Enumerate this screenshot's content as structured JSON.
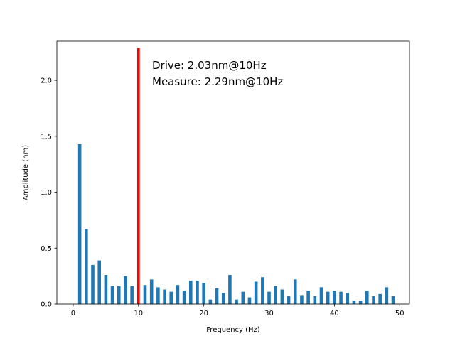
{
  "chart_data": {
    "type": "bar",
    "xlabel": "Frequency (Hz)",
    "ylabel": "Amplitude (nm)",
    "xlim": [
      -2.5,
      51.5
    ],
    "ylim": [
      0,
      2.35
    ],
    "xticks": [
      0,
      10,
      20,
      30,
      40,
      50
    ],
    "yticks": [
      0.0,
      0.5,
      1.0,
      1.5,
      2.0
    ],
    "xtick_labels": [
      "0",
      "10",
      "20",
      "30",
      "40",
      "50"
    ],
    "ytick_labels": [
      "0.0",
      "0.5",
      "1.0",
      "1.5",
      "2.0"
    ],
    "grid": false,
    "series": [
      {
        "color": "#1f77b4",
        "x": [
          1,
          2,
          3,
          4,
          5,
          6,
          7,
          8,
          9,
          11,
          12,
          13,
          14,
          15,
          16,
          17,
          18,
          19,
          20,
          21,
          22,
          23,
          24,
          25,
          26,
          27,
          28,
          29,
          30,
          31,
          32,
          33,
          34,
          35,
          36,
          37,
          38,
          39,
          40,
          41,
          42,
          43,
          44,
          45,
          46,
          47,
          48,
          49
        ],
        "values": [
          1.43,
          0.67,
          0.35,
          0.39,
          0.26,
          0.16,
          0.16,
          0.25,
          0.16,
          0.17,
          0.22,
          0.15,
          0.13,
          0.11,
          0.17,
          0.12,
          0.21,
          0.21,
          0.19,
          0.04,
          0.14,
          0.1,
          0.26,
          0.04,
          0.11,
          0.06,
          0.2,
          0.24,
          0.11,
          0.16,
          0.13,
          0.07,
          0.22,
          0.08,
          0.12,
          0.07,
          0.15,
          0.11,
          0.12,
          0.11,
          0.1,
          0.03,
          0.03,
          0.12,
          0.07,
          0.09,
          0.15,
          0.07
        ]
      },
      {
        "color": "#ff0000",
        "x": [
          10
        ],
        "values": [
          2.29
        ]
      }
    ],
    "annotations": [
      "Drive: 2.03nm@10Hz",
      "Measure: 2.29nm@10Hz"
    ]
  }
}
